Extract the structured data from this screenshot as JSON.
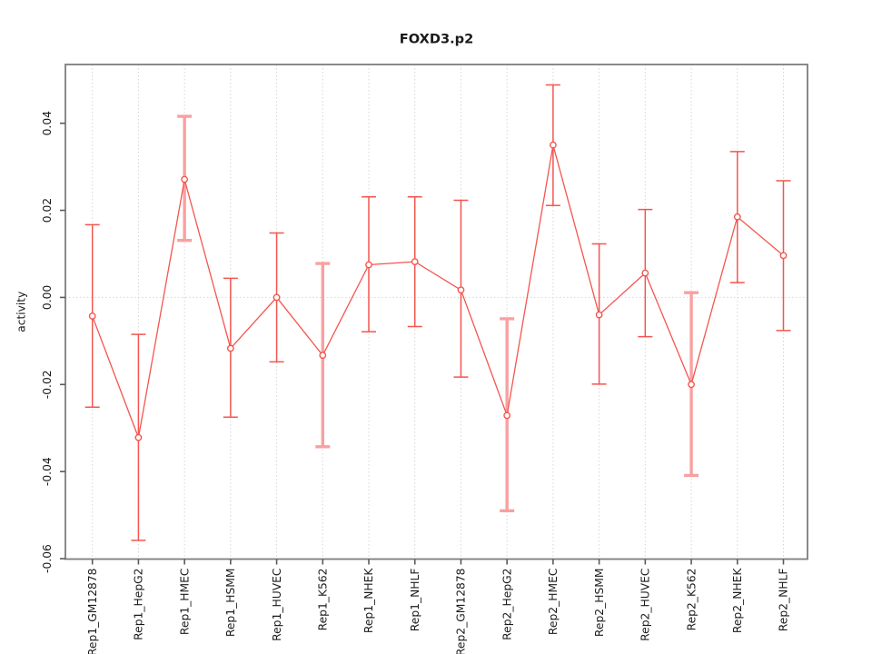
{
  "window": {
    "background": "#ffffff"
  },
  "chart_data": {
    "type": "line",
    "title": "FOXD3.p2",
    "xlabel": "",
    "ylabel": "activity",
    "legend": null,
    "grid": "vertical-dotted-plus-zero-line",
    "marker": "open-circle",
    "categories": [
      "Rep1_GM12878",
      "Rep1_HepG2",
      "Rep1_HMEC",
      "Rep1_HSMM",
      "Rep1_HUVEC",
      "Rep1_K562",
      "Rep1_NHEK",
      "Rep1_NHLF",
      "Rep2_GM12878",
      "Rep2_HepG2",
      "Rep2_HMEC",
      "Rep2_HSMM",
      "Rep2_HUVEC",
      "Rep2_K562",
      "Rep2_NHEK",
      "Rep2_NHLF"
    ],
    "values": [
      -0.0043,
      -0.0322,
      0.0271,
      -0.0117,
      0.0,
      -0.0133,
      0.0075,
      0.0082,
      0.0017,
      -0.0271,
      0.035,
      -0.004,
      0.0056,
      -0.02,
      0.0185,
      0.0096
    ],
    "error_high": [
      0.0167,
      -0.0085,
      0.0416,
      0.0044,
      0.0148,
      0.0078,
      0.0231,
      0.0231,
      0.0223,
      -0.0049,
      0.0488,
      0.0123,
      0.0202,
      0.0011,
      0.0335,
      0.0268
    ],
    "error_low": [
      -0.0252,
      -0.0558,
      0.0131,
      -0.0275,
      -0.0148,
      -0.0343,
      -0.0079,
      -0.0067,
      -0.0183,
      -0.049,
      0.0211,
      -0.0199,
      -0.009,
      -0.0409,
      0.0034,
      -0.0076
    ],
    "bold_whisker_indices": [
      2,
      5,
      9,
      13
    ],
    "y_ticks": [
      0.04,
      0.02,
      0.0,
      -0.02,
      -0.04,
      -0.06
    ],
    "y_tick_labels": [
      "0.04",
      "0.02",
      "0.00",
      "-0.02",
      "-0.04",
      "-0.06"
    ],
    "ylim": [
      -0.0601,
      0.0535
    ],
    "zero_line": 0.0,
    "colors": {
      "series": "#f4554f",
      "whisker": "#f4554f",
      "whisker_bold": "#f9a0a0",
      "marker_fill": "#ffffff",
      "grid": "#d6d6d6",
      "axis": "#7d7d7d",
      "tick": "#5a5a5a",
      "text": "#1a1a1a"
    }
  }
}
